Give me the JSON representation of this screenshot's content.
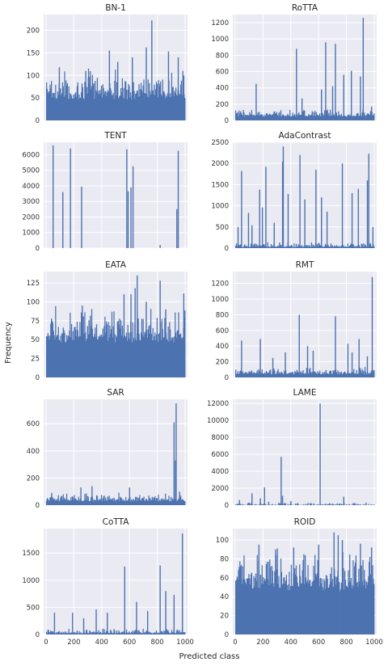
{
  "figure": {
    "xlabel": "Predicted class",
    "ylabel": "Frequency",
    "bar_color": "#4c72b0",
    "panel_bg": "#eaeaf2"
  },
  "chart_data": [
    {
      "type": "bar",
      "title": "BN-1",
      "x": [
        0,
        1000
      ],
      "ylim": [
        0,
        235
      ],
      "yticks": [
        0,
        50,
        100,
        150,
        200
      ],
      "xticks": [
        0,
        200,
        400,
        600,
        800,
        1000
      ],
      "base": 50,
      "noise": 40,
      "peaks": [
        [
          95,
          118
        ],
        [
          285,
          110
        ],
        [
          305,
          115
        ],
        [
          455,
          155
        ],
        [
          515,
          130
        ],
        [
          620,
          140
        ],
        [
          720,
          162
        ],
        [
          760,
          222
        ],
        [
          880,
          153
        ],
        [
          950,
          140
        ],
        [
          990,
          100
        ]
      ]
    },
    {
      "type": "bar",
      "title": "RoTTA",
      "x": [
        0,
        1000
      ],
      "ylim": [
        0,
        1300
      ],
      "yticks": [
        0,
        200,
        400,
        600,
        800,
        1000,
        1200
      ],
      "xticks": [
        0,
        200,
        400,
        600,
        800,
        1000
      ],
      "base": 50,
      "noise": 60,
      "peaks": [
        [
          150,
          450
        ],
        [
          440,
          880
        ],
        [
          480,
          270
        ],
        [
          620,
          380
        ],
        [
          650,
          960
        ],
        [
          700,
          420
        ],
        [
          720,
          940
        ],
        [
          780,
          560
        ],
        [
          835,
          610
        ],
        [
          900,
          540
        ],
        [
          920,
          1260
        ],
        [
          980,
          170
        ]
      ]
    },
    {
      "type": "bar",
      "title": "TENT",
      "x": [
        0,
        1000
      ],
      "ylim": [
        0,
        6800
      ],
      "yticks": [
        0,
        1000,
        2000,
        3000,
        4000,
        5000,
        6000
      ],
      "xticks": [
        0,
        200,
        400,
        600,
        800,
        1000
      ],
      "base": 0,
      "noise": 0,
      "peaks": [
        [
          50,
          6600
        ],
        [
          120,
          3600
        ],
        [
          175,
          6400
        ],
        [
          255,
          3950
        ],
        [
          580,
          6350
        ],
        [
          590,
          3650
        ],
        [
          610,
          3900
        ],
        [
          625,
          5250
        ],
        [
          820,
          200
        ],
        [
          940,
          2500
        ],
        [
          950,
          6250
        ]
      ]
    },
    {
      "type": "bar",
      "title": "AdaContrast",
      "x": [
        0,
        1000
      ],
      "ylim": [
        0,
        2500
      ],
      "yticks": [
        0,
        500,
        1000,
        1500,
        2000,
        2500
      ],
      "xticks": [
        0,
        200,
        400,
        600,
        800,
        1000
      ],
      "base": 20,
      "noise": 80,
      "peaks": [
        [
          20,
          500
        ],
        [
          45,
          1820
        ],
        [
          95,
          830
        ],
        [
          120,
          540
        ],
        [
          175,
          1380
        ],
        [
          195,
          960
        ],
        [
          220,
          1920
        ],
        [
          280,
          600
        ],
        [
          340,
          2040
        ],
        [
          345,
          2400
        ],
        [
          380,
          1280
        ],
        [
          465,
          2200
        ],
        [
          500,
          1150
        ],
        [
          580,
          1850
        ],
        [
          620,
          1200
        ],
        [
          660,
          860
        ],
        [
          770,
          2000
        ],
        [
          840,
          1300
        ],
        [
          885,
          1400
        ],
        [
          950,
          1600
        ],
        [
          960,
          2230
        ],
        [
          990,
          500
        ]
      ]
    },
    {
      "type": "bar",
      "title": "EATA",
      "x": [
        0,
        1000
      ],
      "ylim": [
        0,
        140
      ],
      "yticks": [
        0,
        25,
        50,
        75,
        100,
        125
      ],
      "xticks": [
        0,
        200,
        400,
        600,
        800,
        1000
      ],
      "base": 50,
      "noise": 30,
      "peaks": [
        [
          260,
          95
        ],
        [
          560,
          110
        ],
        [
          610,
          110
        ],
        [
          640,
          118
        ],
        [
          655,
          135
        ],
        [
          720,
          100
        ],
        [
          820,
          128
        ],
        [
          860,
          90
        ],
        [
          990,
          111
        ]
      ]
    },
    {
      "type": "bar",
      "title": "RMT",
      "x": [
        0,
        1000
      ],
      "ylim": [
        0,
        1350
      ],
      "yticks": [
        0,
        200,
        400,
        600,
        800,
        1000,
        1200
      ],
      "xticks": [
        0,
        200,
        400,
        600,
        800,
        1000
      ],
      "base": 40,
      "noise": 60,
      "peaks": [
        [
          45,
          470
        ],
        [
          180,
          490
        ],
        [
          270,
          250
        ],
        [
          360,
          320
        ],
        [
          460,
          800
        ],
        [
          520,
          400
        ],
        [
          560,
          340
        ],
        [
          720,
          780
        ],
        [
          810,
          430
        ],
        [
          840,
          320
        ],
        [
          890,
          490
        ],
        [
          950,
          270
        ],
        [
          985,
          1280
        ]
      ]
    },
    {
      "type": "bar",
      "title": "SAR",
      "x": [
        0,
        1000
      ],
      "ylim": [
        0,
        780
      ],
      "yticks": [
        0,
        200,
        400,
        600
      ],
      "xticks": [
        0,
        200,
        400,
        600,
        800,
        1000
      ],
      "base": 30,
      "noise": 40,
      "peaks": [
        [
          40,
          90
        ],
        [
          250,
          130
        ],
        [
          330,
          140
        ],
        [
          600,
          130
        ],
        [
          920,
          610
        ],
        [
          930,
          330
        ],
        [
          935,
          750
        ],
        [
          960,
          100
        ]
      ]
    },
    {
      "type": "bar",
      "title": "LAME",
      "x": [
        0,
        1000
      ],
      "ylim": [
        0,
        12500
      ],
      "yticks": [
        0,
        2000,
        4000,
        6000,
        8000,
        10000,
        12000
      ],
      "xticks": [
        0,
        200,
        400,
        600,
        800,
        1000
      ],
      "base": 0,
      "noise": 200,
      "peaks": [
        [
          30,
          600
        ],
        [
          100,
          300
        ],
        [
          120,
          1400
        ],
        [
          180,
          800
        ],
        [
          210,
          2100
        ],
        [
          240,
          400
        ],
        [
          330,
          5700
        ],
        [
          340,
          1100
        ],
        [
          400,
          500
        ],
        [
          610,
          12000
        ],
        [
          780,
          1000
        ],
        [
          940,
          300
        ]
      ]
    },
    {
      "type": "bar",
      "title": "CoTTA",
      "x": [
        0,
        1000
      ],
      "ylim": [
        0,
        1950
      ],
      "yticks": [
        0,
        500,
        1000,
        1500
      ],
      "xticks": [
        0,
        200,
        400,
        600,
        800,
        1000
      ],
      "base": 20,
      "noise": 60,
      "peaks": [
        [
          60,
          400
        ],
        [
          190,
          400
        ],
        [
          270,
          300
        ],
        [
          360,
          460
        ],
        [
          440,
          400
        ],
        [
          565,
          1250
        ],
        [
          650,
          600
        ],
        [
          730,
          430
        ],
        [
          820,
          1270
        ],
        [
          860,
          800
        ],
        [
          920,
          730
        ],
        [
          980,
          1860
        ]
      ]
    },
    {
      "type": "bar",
      "title": "ROID",
      "x": [
        0,
        1000
      ],
      "ylim": [
        0,
        112
      ],
      "yticks": [
        0,
        20,
        40,
        60,
        80,
        100
      ],
      "xticks": [
        0,
        200,
        400,
        600,
        800,
        1000
      ],
      "base": 50,
      "noise": 30,
      "peaks": [
        [
          170,
          95
        ],
        [
          290,
          90
        ],
        [
          420,
          92
        ],
        [
          600,
          95
        ],
        [
          710,
          108
        ],
        [
          740,
          105
        ],
        [
          770,
          100
        ],
        [
          900,
          96
        ],
        [
          980,
          92
        ]
      ]
    }
  ]
}
